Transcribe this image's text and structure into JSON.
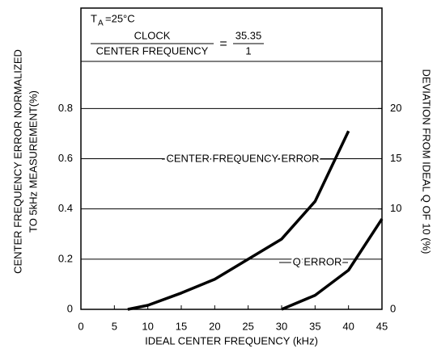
{
  "chart_data": {
    "type": "line",
    "xlabel": "IDEAL CENTER FREQUENCY (kHz)",
    "ylabel": [
      "CENTER FREQUENCY ERROR NORMALIZED",
      "TO 5kHz MEASUREMENT(%)"
    ],
    "y2label": "DEVIATION FROM IDEAL Q OF 10 (%)",
    "conditions": {
      "temp_symbol": "T",
      "temp_subscript": "A",
      "temp_value": "=25°C",
      "numerator": "CLOCK",
      "denominator": "CENTER FREQUENCY",
      "equals": "=",
      "ratio_numerator": "35.35",
      "ratio_denominator": "1"
    },
    "xlim": [
      0,
      45
    ],
    "xticks": [
      0,
      5,
      10,
      15,
      20,
      25,
      30,
      35,
      40,
      45
    ],
    "ylim": [
      0,
      1.2
    ],
    "yticks": [
      0,
      0.2,
      0.4,
      0.6,
      0.8
    ],
    "y2lim": [
      0,
      30
    ],
    "y2ticks": [
      0,
      10,
      15,
      20
    ],
    "grid": true,
    "series": [
      {
        "name": "CENTER FREQUENCY ERROR",
        "color": "#000000",
        "x": [
          7,
          10,
          15,
          20,
          25,
          30,
          35,
          40
        ],
        "values": [
          0,
          0.016,
          0.065,
          0.12,
          0.2,
          0.28,
          0.43,
          0.71
        ]
      },
      {
        "name": "Q ERROR",
        "color": "#000000",
        "axis": "y2",
        "x": [
          30,
          35,
          40,
          45
        ],
        "values": [
          0,
          1.4,
          3.9,
          9
        ]
      }
    ]
  }
}
